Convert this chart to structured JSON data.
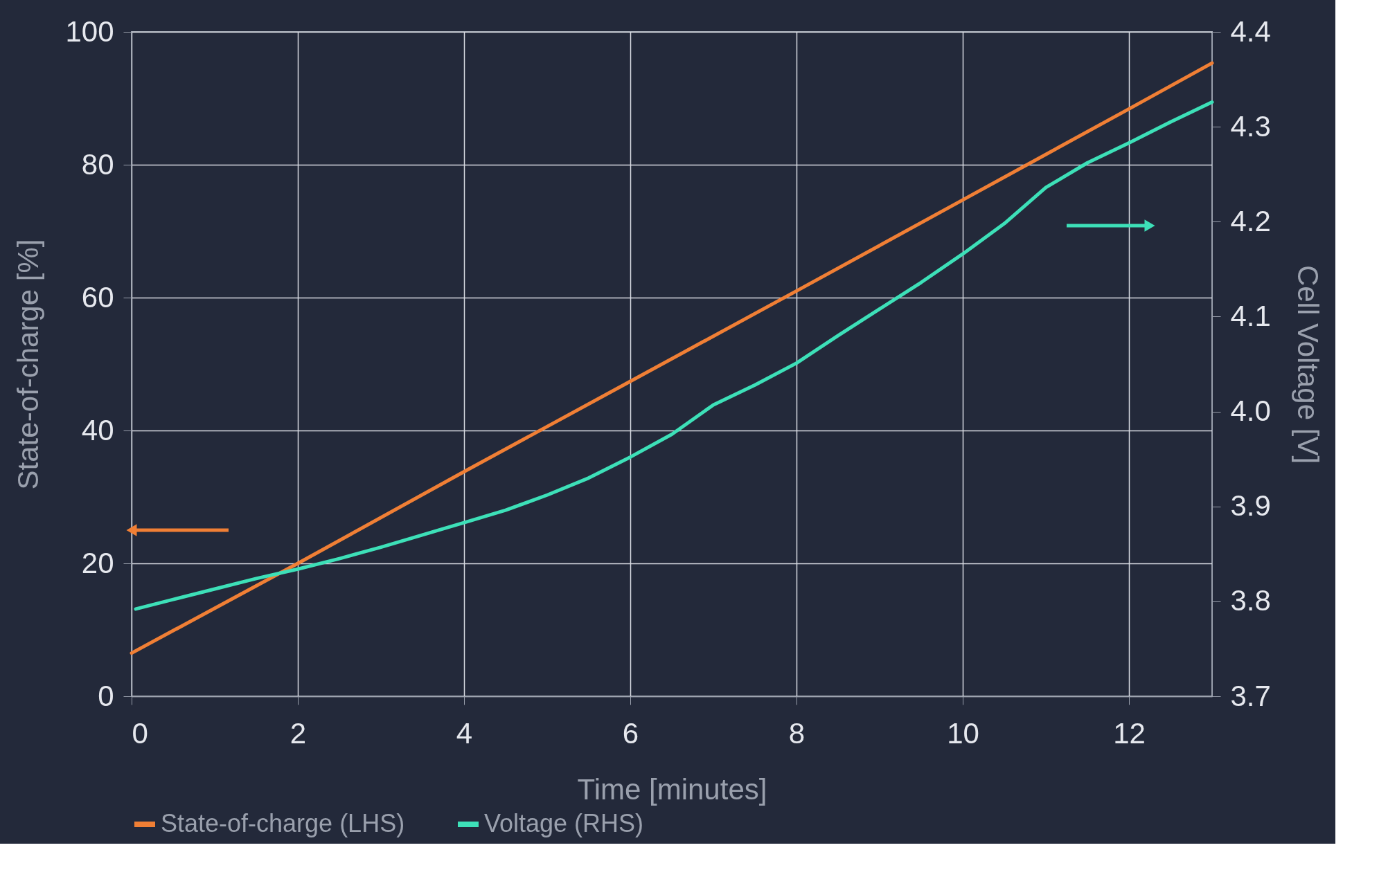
{
  "chart_data": {
    "type": "line",
    "xlabel": "Time [minutes]",
    "ylabel": "State-of-charge [%]",
    "y2label": "Cell Voltage [V]",
    "xlim": [
      0,
      13
    ],
    "xticks": [
      0,
      2,
      4,
      6,
      8,
      10,
      12
    ],
    "ylim": [
      0,
      100
    ],
    "yticks": [
      0,
      20,
      40,
      60,
      80,
      100
    ],
    "y2lim": [
      3.7,
      4.4
    ],
    "y2ticks": [
      {
        "value": 3.7,
        "label": "3.7"
      },
      {
        "value": 3.8,
        "label": "3.8"
      },
      {
        "value": 3.9,
        "label": "3.9"
      },
      {
        "value": 4.0,
        "label": "4.0"
      },
      {
        "value": 4.1,
        "label": "4.1"
      },
      {
        "value": 4.2,
        "label": "4.2"
      },
      {
        "value": 4.3,
        "label": "4.3"
      },
      {
        "value": 4.4,
        "label": "4.4"
      }
    ],
    "grid": true,
    "legend": "bottom",
    "marker": "none",
    "line_style": "solid",
    "series": [
      {
        "name": "State-of-charge (LHS)",
        "color": "#f07f35",
        "x": [
          0,
          2,
          4,
          6,
          8,
          10,
          12,
          13
        ],
        "values": [
          6.5,
          20.0,
          33.8,
          47.4,
          61.0,
          74.7,
          88.4,
          95.3
        ]
      },
      {
        "name": "Voltage (RHS)",
        "color": "#3de0b8",
        "axis": "y2",
        "x": [
          0.05,
          0.5,
          1,
          1.5,
          2,
          2.5,
          3,
          3.5,
          4,
          4.5,
          5,
          5.5,
          6,
          6.5,
          7,
          7.5,
          8,
          8.5,
          9,
          9.5,
          10,
          10.5,
          11,
          11.5,
          12,
          12.5,
          13
        ],
        "values": [
          3.792,
          3.802,
          3.813,
          3.824,
          3.834,
          3.845,
          3.857,
          3.87,
          3.883,
          3.896,
          3.912,
          3.93,
          3.952,
          3.976,
          4.007,
          4.028,
          4.051,
          4.08,
          4.108,
          4.136,
          4.166,
          4.198,
          4.236,
          4.262,
          4.283,
          4.305,
          4.326
        ]
      }
    ]
  }
}
